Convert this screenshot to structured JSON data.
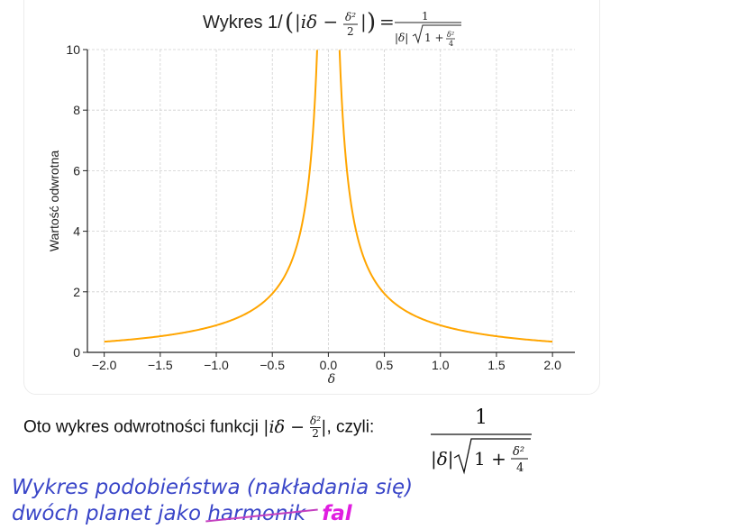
{
  "chart_data": {
    "type": "line",
    "title_prefix": "Wykres 1/",
    "xlabel": "δ",
    "ylabel": "Wartość odwrotna",
    "xlim": [
      -2.15,
      2.2
    ],
    "ylim": [
      0,
      10
    ],
    "x_ticks": [
      -2.0,
      -1.5,
      -1.0,
      -0.5,
      0.0,
      0.5,
      1.0,
      1.5,
      2.0
    ],
    "x_tick_labels": [
      "−2.0",
      "−1.5",
      "−1.0",
      "−0.5",
      "0.0",
      "0.5",
      "1.0",
      "1.5",
      "2.0"
    ],
    "y_ticks": [
      0,
      2,
      4,
      6,
      8,
      10
    ],
    "y_tick_labels": [
      "0",
      "2",
      "4",
      "6",
      "8",
      "10"
    ],
    "grid": true,
    "series": [
      {
        "color": "#ffa500",
        "function": "1/(|δ|*sqrt(1+δ^2/4))",
        "x": [
          -2.0,
          -1.5,
          -1.0,
          -0.75,
          -0.5,
          -0.4,
          -0.3,
          -0.25,
          -0.2,
          -0.15,
          -0.12,
          -0.1,
          0.1,
          0.12,
          0.15,
          0.2,
          0.25,
          0.3,
          0.4,
          0.5,
          0.75,
          1.0,
          1.5,
          2.0
        ],
        "y": [
          0.354,
          0.533,
          0.894,
          1.257,
          1.94,
          2.475,
          3.306,
          3.969,
          4.975,
          6.649,
          8.318,
          9.988,
          9.988,
          8.318,
          6.649,
          4.975,
          3.969,
          3.306,
          2.475,
          1.94,
          1.257,
          0.894,
          0.533,
          0.354
        ]
      }
    ]
  },
  "explanation": {
    "text_before": "Oto wykres odwrotności funkcji",
    "text_after": ", czyli:"
  },
  "handwriting": {
    "line1": "Wykres podobieństwa (nakładania się)",
    "line2_prefix": "dwóch planet jako ",
    "struck_word": "harmonik",
    "correction": "fal"
  },
  "colors": {
    "curve": "#ffa500",
    "handwriting": "#3a46c8",
    "correction": "#e01ee0"
  }
}
